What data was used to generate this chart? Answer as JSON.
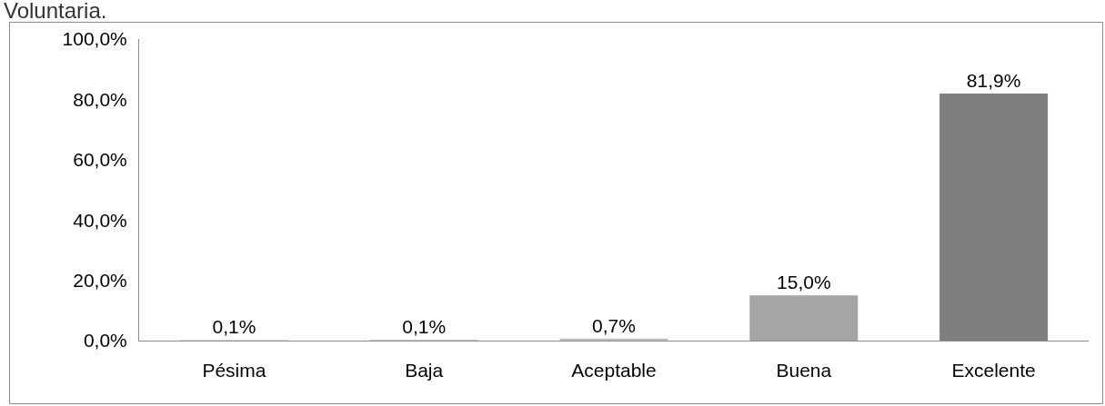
{
  "chart_data": {
    "type": "bar",
    "title": "Voluntaria.",
    "categories": [
      "Pésima",
      "Baja",
      "Aceptable",
      "Buena",
      "Excelente"
    ],
    "values": [
      0.1,
      0.1,
      0.7,
      15.0,
      81.9
    ],
    "colors": [
      "#d9d9d9",
      "#c8c8c8",
      "#bfbfbf",
      "#a5a5a5",
      "#7f7f7f"
    ],
    "value_labels": [
      "0,1%",
      "0,1%",
      "0,7%",
      "15,0%",
      "81,9%"
    ],
    "ylim": [
      0,
      100
    ],
    "yticks": [
      {
        "value": 0,
        "label": "0,0%"
      },
      {
        "value": 20,
        "label": "20,0%"
      },
      {
        "value": 40,
        "label": "40,0%"
      },
      {
        "value": 60,
        "label": "60,0%"
      },
      {
        "value": 80,
        "label": "80,0%"
      },
      {
        "value": 100,
        "label": "100,0%"
      }
    ],
    "grid": false
  }
}
